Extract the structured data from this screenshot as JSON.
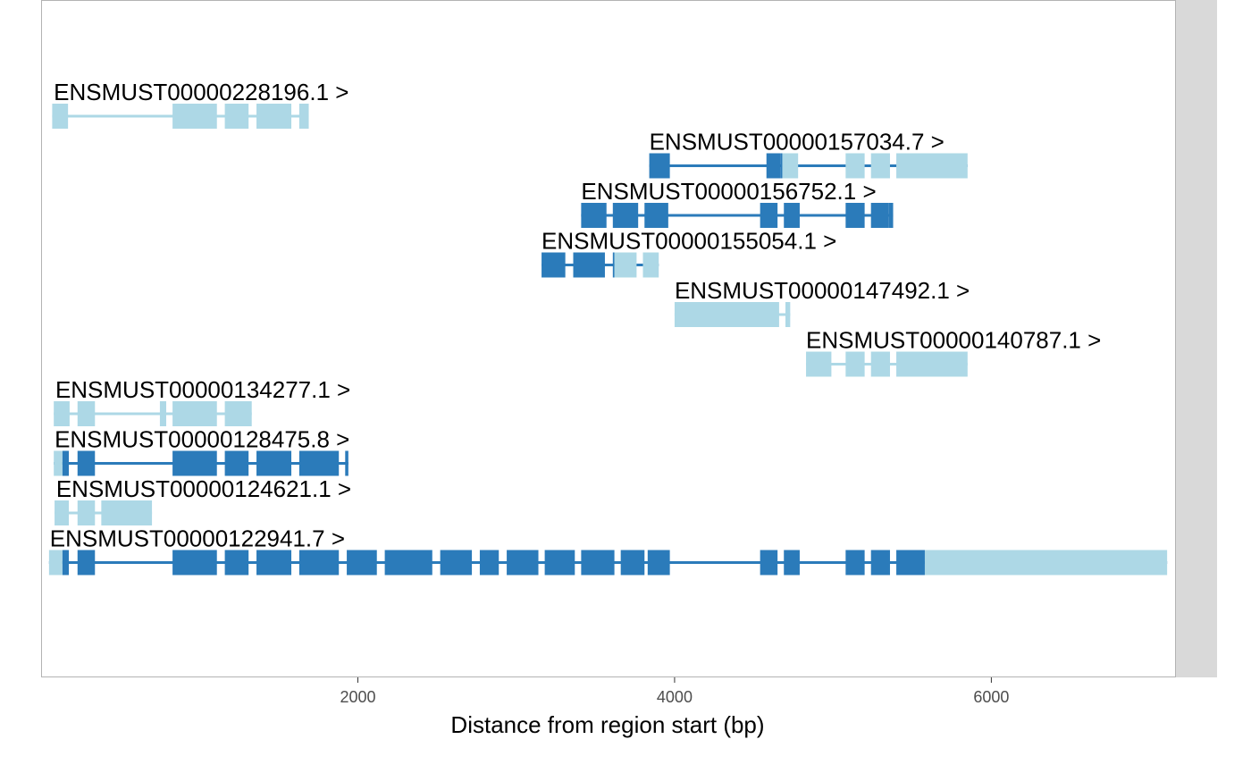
{
  "colors": {
    "utr": "#add8e6",
    "cds": "#2b7bba",
    "panel_border": "#b3b3b3",
    "strip": "#d9d9d9",
    "tick_text": "#4d4d4d"
  },
  "chart_data": {
    "type": "gene-track",
    "title": "",
    "xlabel": "Distance from region start (bp)",
    "ylabel": "",
    "xlim": [
      0,
      7160
    ],
    "xticks": [
      2000,
      4000,
      6000
    ],
    "grid": false,
    "transcripts": [
      {
        "name": "ENSMUST00000228196.1 >",
        "label_x": 80,
        "line_start": 70,
        "line_end": 1690,
        "exons": [
          {
            "s": 70,
            "e": 170,
            "t": "utr"
          },
          {
            "s": 830,
            "e": 1110,
            "t": "utr"
          },
          {
            "s": 1160,
            "e": 1310,
            "t": "utr"
          },
          {
            "s": 1360,
            "e": 1580,
            "t": "utr"
          },
          {
            "s": 1630,
            "e": 1690,
            "t": "utr"
          }
        ]
      },
      {
        "name": "ENSMUST00000157034.7 >",
        "label_x": 3840,
        "line_start": 3840,
        "line_end": 5850,
        "exons": [
          {
            "s": 3840,
            "e": 3970,
            "t": "cds"
          },
          {
            "s": 4580,
            "e": 4670,
            "t": "cds"
          },
          {
            "s": 4670,
            "e": 4680,
            "t": "cds"
          },
          {
            "s": 4680,
            "e": 4780,
            "t": "utr"
          },
          {
            "s": 5080,
            "e": 5200,
            "t": "utr"
          },
          {
            "s": 5240,
            "e": 5360,
            "t": "utr"
          },
          {
            "s": 5400,
            "e": 5850,
            "t": "utr"
          }
        ]
      },
      {
        "name": "ENSMUST00000156752.1 >",
        "label_x": 3410,
        "line_start": 3410,
        "line_end": 5380,
        "exons": [
          {
            "s": 3410,
            "e": 3570,
            "t": "cds"
          },
          {
            "s": 3610,
            "e": 3770,
            "t": "cds"
          },
          {
            "s": 3810,
            "e": 3960,
            "t": "cds"
          },
          {
            "s": 4540,
            "e": 4650,
            "t": "cds"
          },
          {
            "s": 4690,
            "e": 4790,
            "t": "cds"
          },
          {
            "s": 5080,
            "e": 5200,
            "t": "cds"
          },
          {
            "s": 5240,
            "e": 5350,
            "t": "cds"
          },
          {
            "s": 5350,
            "e": 5380,
            "t": "cds"
          }
        ]
      },
      {
        "name": "ENSMUST00000155054.1 >",
        "label_x": 3160,
        "line_start": 3160,
        "line_end": 3900,
        "exons": [
          {
            "s": 3160,
            "e": 3310,
            "t": "cds"
          },
          {
            "s": 3360,
            "e": 3560,
            "t": "cds"
          },
          {
            "s": 3610,
            "e": 3620,
            "t": "cds"
          },
          {
            "s": 3620,
            "e": 3760,
            "t": "utr"
          },
          {
            "s": 3800,
            "e": 3900,
            "t": "utr"
          }
        ]
      },
      {
        "name": "ENSMUST00000147492.1 >",
        "label_x": 4000,
        "line_start": 4000,
        "line_end": 4730,
        "exons": [
          {
            "s": 4000,
            "e": 4660,
            "t": "utr"
          },
          {
            "s": 4700,
            "e": 4730,
            "t": "utr"
          }
        ]
      },
      {
        "name": "ENSMUST00000140787.1 >",
        "label_x": 4830,
        "line_start": 4830,
        "line_end": 5850,
        "exons": [
          {
            "s": 4830,
            "e": 4990,
            "t": "utr"
          },
          {
            "s": 5080,
            "e": 5200,
            "t": "utr"
          },
          {
            "s": 5240,
            "e": 5360,
            "t": "utr"
          },
          {
            "s": 5400,
            "e": 5850,
            "t": "utr"
          }
        ]
      },
      {
        "name": "ENSMUST00000134277.1 >",
        "label_x": 90,
        "line_start": 80,
        "line_end": 1330,
        "exons": [
          {
            "s": 80,
            "e": 180,
            "t": "utr"
          },
          {
            "s": 230,
            "e": 340,
            "t": "utr"
          },
          {
            "s": 750,
            "e": 790,
            "t": "utr"
          },
          {
            "s": 830,
            "e": 1110,
            "t": "utr"
          },
          {
            "s": 1160,
            "e": 1330,
            "t": "utr"
          }
        ]
      },
      {
        "name": "ENSMUST00000128475.8 >",
        "label_x": 85,
        "line_start": 80,
        "line_end": 1940,
        "exons": [
          {
            "s": 80,
            "e": 135,
            "t": "utr"
          },
          {
            "s": 135,
            "e": 175,
            "t": "cds"
          },
          {
            "s": 230,
            "e": 340,
            "t": "cds"
          },
          {
            "s": 830,
            "e": 1110,
            "t": "cds"
          },
          {
            "s": 1160,
            "e": 1310,
            "t": "cds"
          },
          {
            "s": 1360,
            "e": 1580,
            "t": "cds"
          },
          {
            "s": 1630,
            "e": 1880,
            "t": "cds"
          },
          {
            "s": 1920,
            "e": 1940,
            "t": "cds"
          }
        ]
      },
      {
        "name": "ENSMUST00000124621.1 >",
        "label_x": 95,
        "line_start": 85,
        "line_end": 700,
        "exons": [
          {
            "s": 85,
            "e": 175,
            "t": "utr"
          },
          {
            "s": 230,
            "e": 340,
            "t": "utr"
          },
          {
            "s": 380,
            "e": 700,
            "t": "utr"
          }
        ]
      },
      {
        "name": "ENSMUST00000122941.7 >",
        "label_x": 55,
        "line_start": 50,
        "line_end": 7110,
        "exons": [
          {
            "s": 50,
            "e": 135,
            "t": "utr"
          },
          {
            "s": 135,
            "e": 175,
            "t": "cds"
          },
          {
            "s": 230,
            "e": 340,
            "t": "cds"
          },
          {
            "s": 830,
            "e": 1110,
            "t": "cds"
          },
          {
            "s": 1160,
            "e": 1310,
            "t": "cds"
          },
          {
            "s": 1360,
            "e": 1580,
            "t": "cds"
          },
          {
            "s": 1630,
            "e": 1880,
            "t": "cds"
          },
          {
            "s": 1930,
            "e": 2120,
            "t": "cds"
          },
          {
            "s": 2170,
            "e": 2470,
            "t": "cds"
          },
          {
            "s": 2520,
            "e": 2720,
            "t": "cds"
          },
          {
            "s": 2770,
            "e": 2890,
            "t": "cds"
          },
          {
            "s": 2940,
            "e": 3140,
            "t": "cds"
          },
          {
            "s": 3180,
            "e": 3370,
            "t": "cds"
          },
          {
            "s": 3410,
            "e": 3620,
            "t": "cds"
          },
          {
            "s": 3660,
            "e": 3810,
            "t": "cds"
          },
          {
            "s": 3830,
            "e": 3970,
            "t": "cds"
          },
          {
            "s": 4540,
            "e": 4650,
            "t": "cds"
          },
          {
            "s": 4690,
            "e": 4790,
            "t": "cds"
          },
          {
            "s": 5080,
            "e": 5200,
            "t": "cds"
          },
          {
            "s": 5240,
            "e": 5360,
            "t": "cds"
          },
          {
            "s": 5400,
            "e": 5580,
            "t": "cds"
          },
          {
            "s": 5580,
            "e": 7110,
            "t": "utr"
          }
        ]
      }
    ]
  }
}
